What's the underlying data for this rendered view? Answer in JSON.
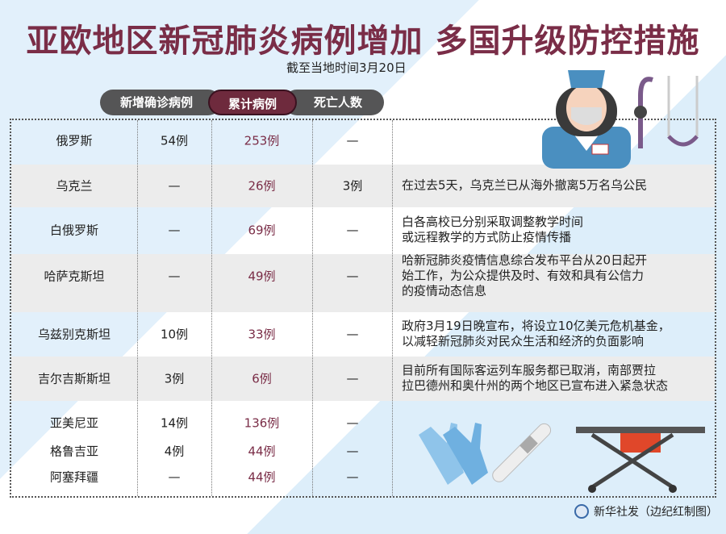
{
  "title": "亚欧地区新冠肺炎病例增加  多国升级防控措施",
  "subtitle": "截至当地时间3月20日",
  "headers": {
    "new": "新增确诊病例",
    "cumulative": "累计病例",
    "deaths": "死亡人数"
  },
  "colors": {
    "title": "#7a2d47",
    "accent": "#6e2a3d",
    "header_gray": "#555556",
    "background_blue": "#e2f0fb"
  },
  "rows": [
    {
      "country": "俄罗斯",
      "new": "54例",
      "cumulative": "253例",
      "deaths": "—",
      "note": ""
    },
    {
      "country": "乌克兰",
      "new": "—",
      "cumulative": "26例",
      "deaths": "3例",
      "note": "在过去5天，乌克兰已从海外撤离5万名乌公民"
    },
    {
      "country": "白俄罗斯",
      "new": "—",
      "cumulative": "69例",
      "deaths": "—",
      "note": "白各高校已分别采取调整教学时间\n或远程教学的方式防止疫情传播"
    },
    {
      "country": "哈萨克斯坦",
      "new": "—",
      "cumulative": "49例",
      "deaths": "—",
      "note": "哈新冠肺炎疫情信息综合发布平台从20日起开\n始工作，为公众提供及时、有效和具有公信力\n的疫情动态信息"
    },
    {
      "country": "乌兹别克斯坦",
      "new": "10例",
      "cumulative": "33例",
      "deaths": "—",
      "note": "政府3月19日晚宣布，将设立10亿美元危机基金，\n以减轻新冠肺炎对民众生活和经济的负面影响"
    },
    {
      "country": "吉尔吉斯斯坦",
      "new": "3例",
      "cumulative": "6例",
      "deaths": "—",
      "note": "目前所有国际客运列车服务都已取消，南部贾拉\n拉巴德州和奥什州的两个地区已宣布进入紧急状态"
    },
    {
      "country": "亚美尼亚",
      "new": "14例",
      "cumulative": "136例",
      "deaths": "—",
      "note": ""
    },
    {
      "country": "格鲁吉亚",
      "new": "4例",
      "cumulative": "44例",
      "deaths": "—",
      "note": ""
    },
    {
      "country": "阿塞拜疆",
      "new": "—",
      "cumulative": "44例",
      "deaths": "—",
      "note": ""
    }
  ],
  "credit": "新华社发（边纪红制图）",
  "icons": [
    "nurse-illustration",
    "stethoscope-icon",
    "gloves-icon",
    "thermometer-icon",
    "stretcher-icon",
    "xinhua-logo"
  ]
}
